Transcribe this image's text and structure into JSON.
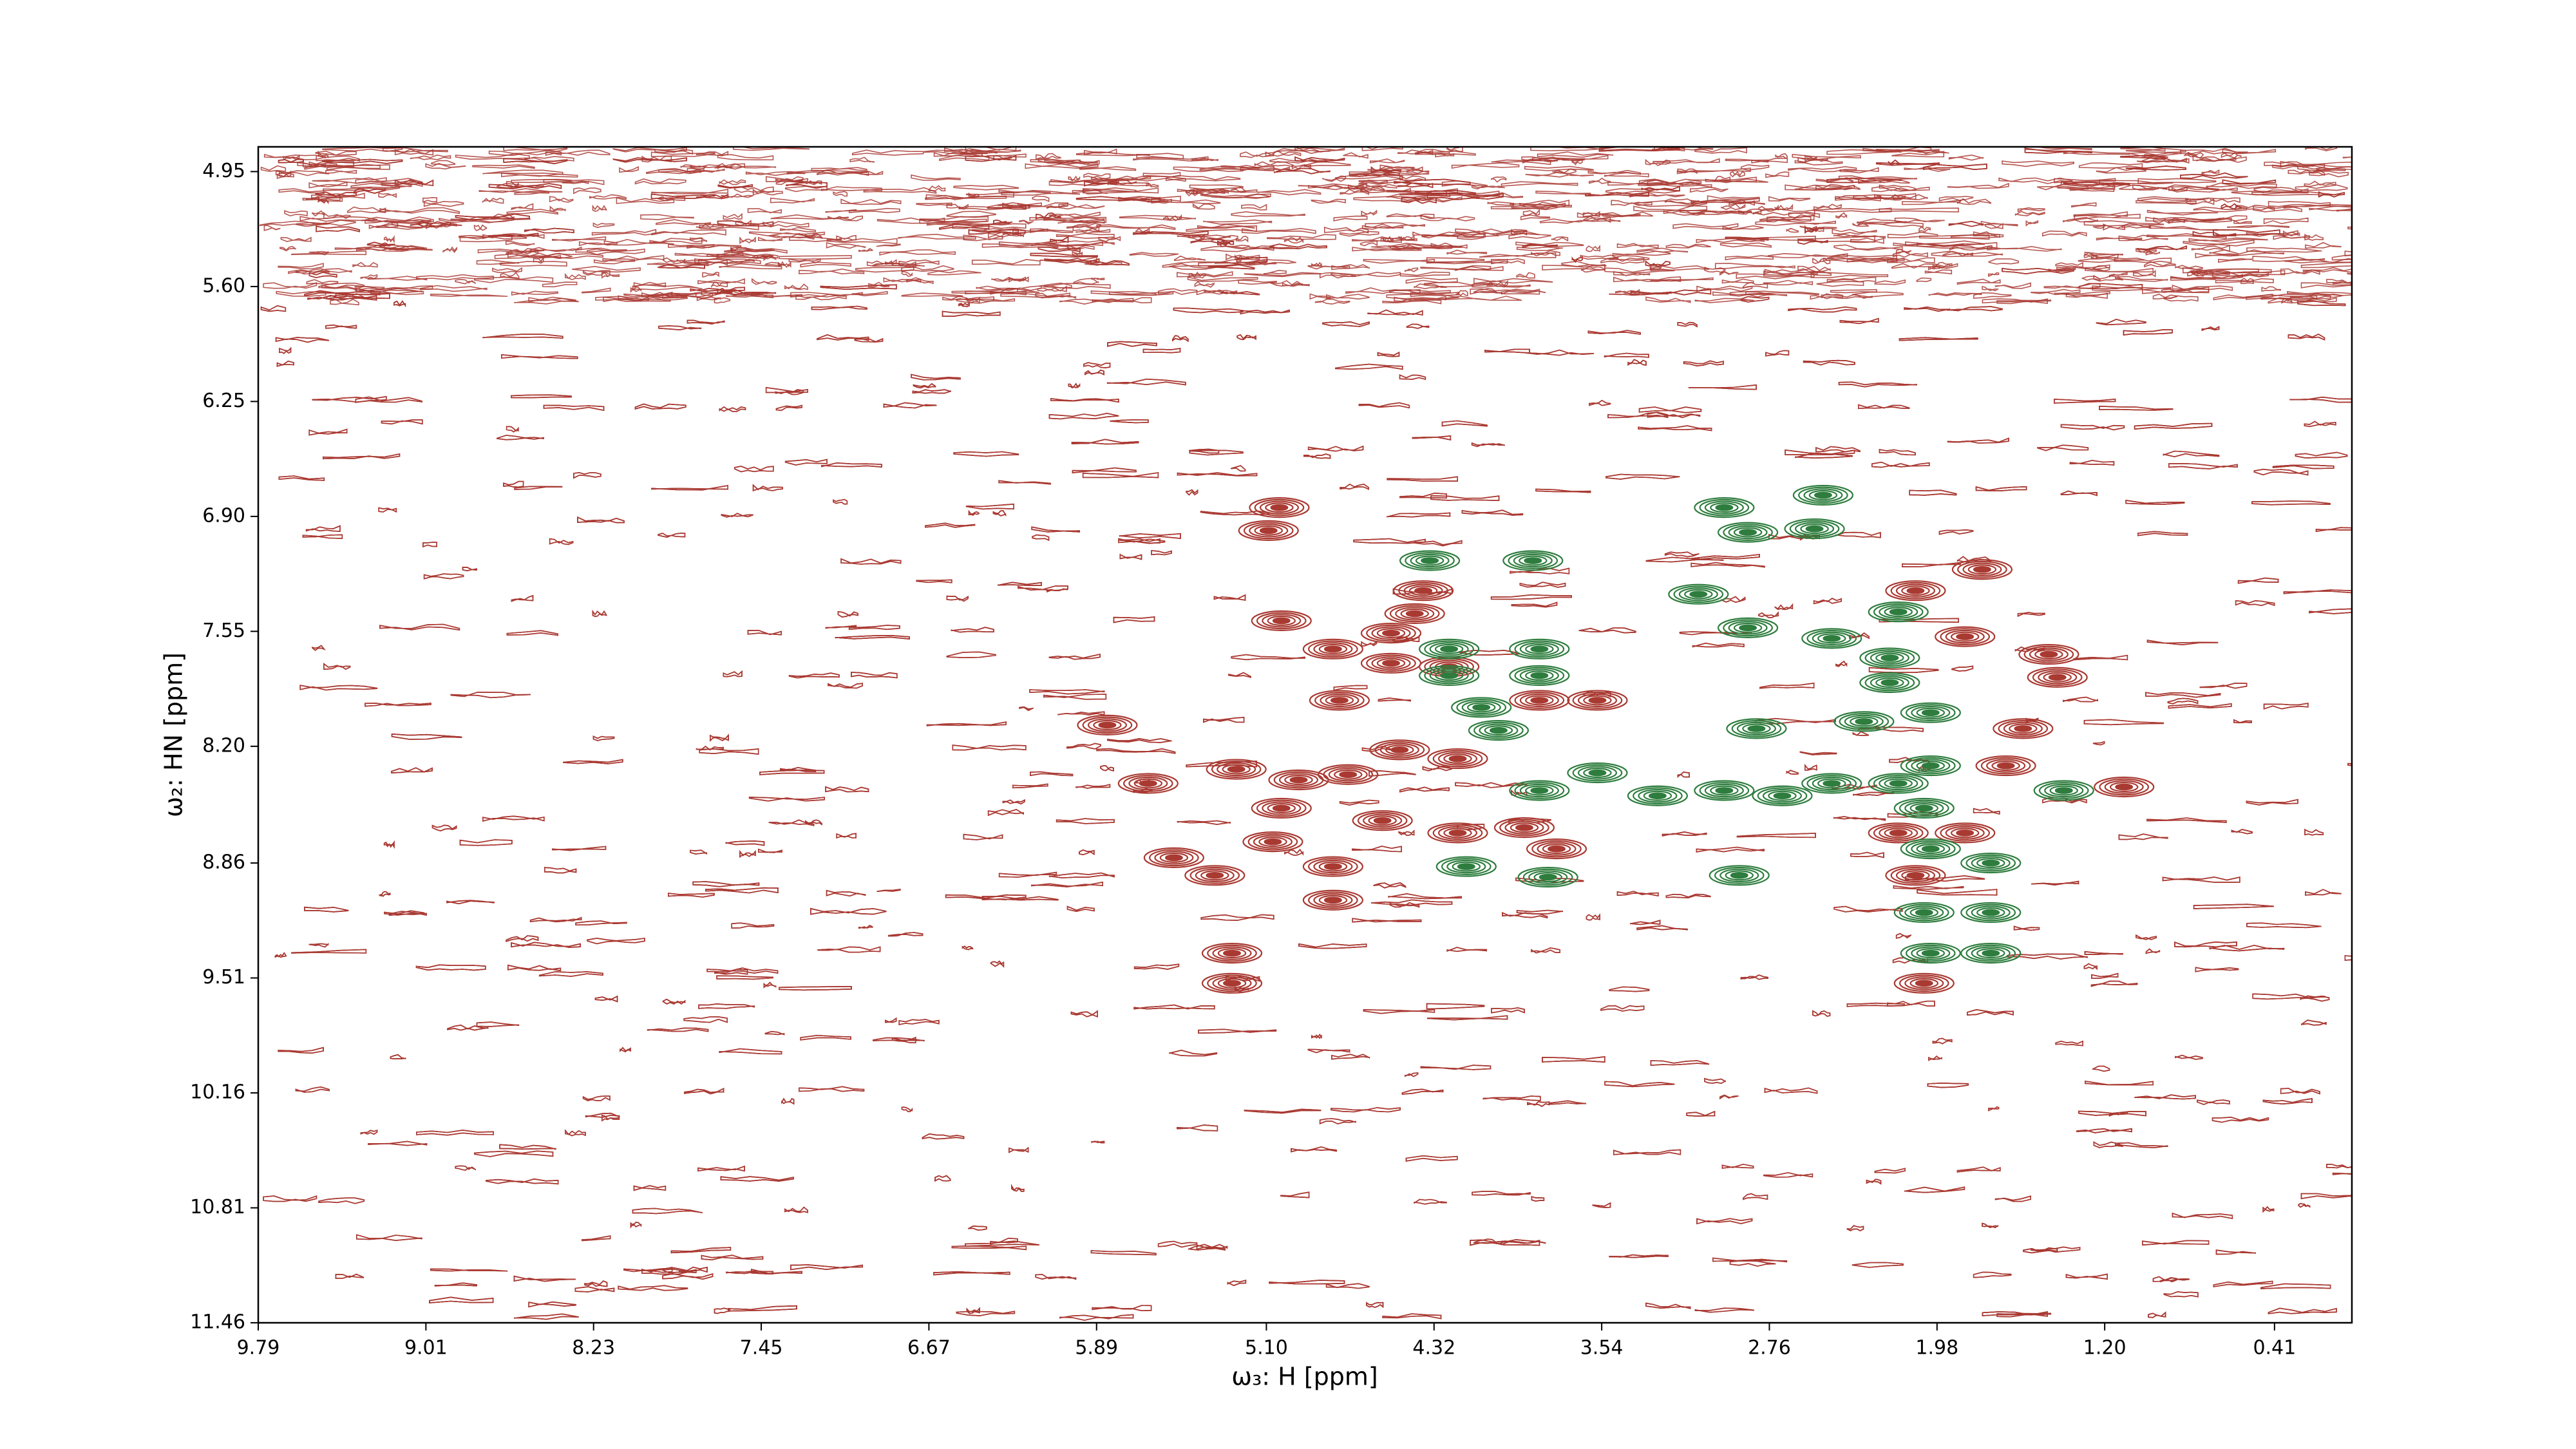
{
  "chart_data": {
    "type": "contour",
    "x_label": "ω₃: H [ppm]",
    "y_label": "ω₂: HN [ppm]",
    "xlim": [
      9.79,
      0.05
    ],
    "ylim": [
      11.46,
      4.81
    ],
    "xticks": [
      9.79,
      9.01,
      8.23,
      7.45,
      6.67,
      5.89,
      {
        "value": 5.1,
        "label": "5.10"
      },
      4.32,
      3.54,
      2.76,
      1.98,
      {
        "value": 1.2,
        "label": "1.20"
      },
      0.41
    ],
    "yticks": [
      4.95,
      {
        "value": 5.6,
        "label": "5.60"
      },
      6.25,
      {
        "value": 6.9,
        "label": "6.90"
      },
      7.55,
      {
        "value": 8.2,
        "label": "8.20"
      },
      8.86,
      9.51,
      10.16,
      10.81,
      11.46
    ],
    "series": [
      {
        "color": "#a93a32",
        "x": [
          5.04,
          5.09,
          5.03,
          4.79,
          4.37,
          4.41,
          4.52,
          4.52,
          4.25,
          3.83,
          3.56,
          4.76,
          5.84,
          5.65,
          5.24,
          4.95,
          4.72,
          4.48,
          4.21,
          5.03,
          4.56,
          4.21,
          3.9,
          3.75,
          5.53,
          5.34,
          5.07,
          4.79,
          4.79,
          5.26,
          5.26,
          2.08,
          1.77,
          1.85,
          1.46,
          1.42,
          1.58,
          1.66,
          1.11,
          2.04,
          2.08,
          1.85,
          2.16
        ],
        "y": [
          6.85,
          6.98,
          7.49,
          7.65,
          7.32,
          7.45,
          7.56,
          7.73,
          7.75,
          7.94,
          7.94,
          7.94,
          8.08,
          8.41,
          8.33,
          8.39,
          8.36,
          8.22,
          8.27,
          8.55,
          8.62,
          8.69,
          8.66,
          8.78,
          8.83,
          8.93,
          8.74,
          8.88,
          9.07,
          9.37,
          9.54,
          7.32,
          7.2,
          7.58,
          7.68,
          7.81,
          8.1,
          8.31,
          8.43,
          9.54,
          8.93,
          8.69,
          8.69
        ]
      },
      {
        "color": "#2e7d3e",
        "x": [
          4.34,
          3.86,
          2.97,
          2.51,
          2.86,
          2.55,
          4.25,
          3.83,
          4.25,
          3.83,
          4.1,
          4.02,
          2.82,
          2.32,
          2.01,
          2.86,
          2.47,
          2.16,
          2.2,
          2.2,
          3.83,
          3.56,
          3.28,
          2.97,
          2.7,
          2.47,
          2.16,
          2.01,
          1.39,
          2.9,
          2.04,
          2.01,
          1.73,
          4.17,
          3.79,
          2.04,
          1.73,
          2.01,
          1.73,
          3.09
        ],
        "y": [
          7.15,
          7.15,
          6.85,
          6.78,
          6.99,
          6.97,
          7.65,
          7.65,
          7.8,
          7.8,
          7.98,
          8.11,
          8.1,
          8.06,
          8.01,
          7.53,
          7.59,
          7.44,
          7.7,
          7.84,
          8.45,
          8.35,
          8.48,
          8.45,
          8.48,
          8.41,
          8.41,
          8.31,
          8.45,
          8.93,
          8.55,
          8.78,
          8.86,
          8.88,
          8.94,
          9.14,
          9.14,
          9.37,
          9.37,
          7.34
        ]
      }
    ]
  }
}
